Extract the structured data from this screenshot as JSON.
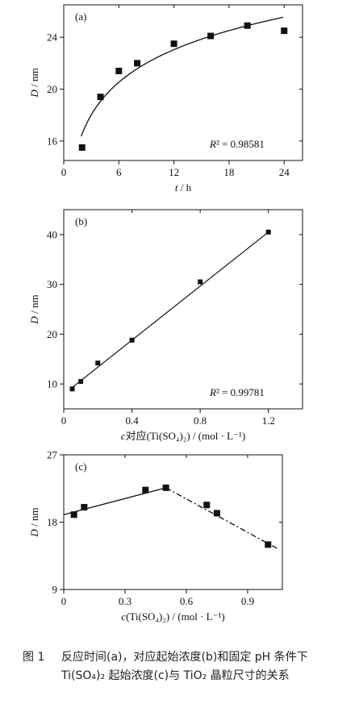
{
  "chart_data": [
    {
      "panel": "(a)",
      "type": "scatter",
      "xlabel": "t / h",
      "ylabel": "D / nm",
      "xlim": [
        0,
        26
      ],
      "ylim": [
        14.5,
        26.5
      ],
      "xticks": [
        0,
        6,
        12,
        18,
        24
      ],
      "xticks_labels": [
        "0",
        "6",
        "12",
        "18",
        "24"
      ],
      "yticks": [
        16,
        20,
        24
      ],
      "yticks_labels": [
        "16",
        "20",
        "24"
      ],
      "points": [
        {
          "x": 2,
          "y": 15.5
        },
        {
          "x": 4,
          "y": 19.4
        },
        {
          "x": 6,
          "y": 21.4
        },
        {
          "x": 8,
          "y": 22.0
        },
        {
          "x": 12,
          "y": 23.5
        },
        {
          "x": 16,
          "y": 24.1
        },
        {
          "x": 20,
          "y": 24.9
        },
        {
          "x": 24,
          "y": 24.5
        }
      ],
      "fit": {
        "type": "log",
        "r2_label": "R² = 0.98581"
      },
      "grid": false
    },
    {
      "panel": "(b)",
      "type": "scatter",
      "xlabel": "c对应(Ti(SO₄)₂) / (mol · L⁻¹)",
      "ylabel": "D / nm",
      "xlim": [
        0,
        1.4
      ],
      "ylim": [
        5,
        45
      ],
      "xticks": [
        0,
        0.4,
        0.8,
        1.2
      ],
      "xticks_labels": [
        "0",
        "0.4",
        "0.8",
        "1.2"
      ],
      "yticks": [
        10,
        20,
        30,
        40
      ],
      "yticks_labels": [
        "10",
        "20",
        "30",
        "40"
      ],
      "points": [
        {
          "x": 0.05,
          "y": 9.0
        },
        {
          "x": 0.1,
          "y": 10.5
        },
        {
          "x": 0.2,
          "y": 14.2
        },
        {
          "x": 0.4,
          "y": 18.8
        },
        {
          "x": 0.8,
          "y": 30.5
        },
        {
          "x": 1.2,
          "y": 40.5
        }
      ],
      "fit": {
        "type": "linear",
        "x0": 0.05,
        "y0": 9.3,
        "x1": 1.2,
        "y1": 40.5,
        "r2_label": "R² = 0.99781"
      },
      "grid": false
    },
    {
      "panel": "(c)",
      "type": "scatter",
      "xlabel": "c(Ti(SO₄)₂) / (mol · L⁻¹)",
      "ylabel": "D / nm",
      "xlim": [
        0,
        1.07
      ],
      "ylim": [
        9,
        27
      ],
      "xticks": [
        0,
        0.3,
        0.6,
        0.9
      ],
      "xticks_labels": [
        "0",
        "0.3",
        "0.6",
        "0.9"
      ],
      "yticks": [
        9,
        18,
        27
      ],
      "yticks_labels": [
        "9",
        "18",
        "27"
      ],
      "points": [
        {
          "x": 0.05,
          "y": 19.0
        },
        {
          "x": 0.1,
          "y": 20.0
        },
        {
          "x": 0.4,
          "y": 22.3
        },
        {
          "x": 0.5,
          "y": 22.6
        },
        {
          "x": 0.7,
          "y": 20.3
        },
        {
          "x": 0.75,
          "y": 19.2
        },
        {
          "x": 1.0,
          "y": 15.0
        }
      ],
      "segments": [
        {
          "style": "solid",
          "x0": 0.0,
          "y0": 19.0,
          "x1": 0.5,
          "y1": 22.6
        },
        {
          "style": "dashdot",
          "x0": 0.5,
          "y0": 22.6,
          "x1": 1.05,
          "y1": 14.4
        }
      ],
      "grid": false
    }
  ],
  "caption": {
    "number": "图 1",
    "text": "反应时间(a)，对应起始浓度(b)和固定 pH 条件下 Ti(SO₄)₂ 起始浓度(c)与 TiO₂ 晶粒尺寸的关系"
  }
}
